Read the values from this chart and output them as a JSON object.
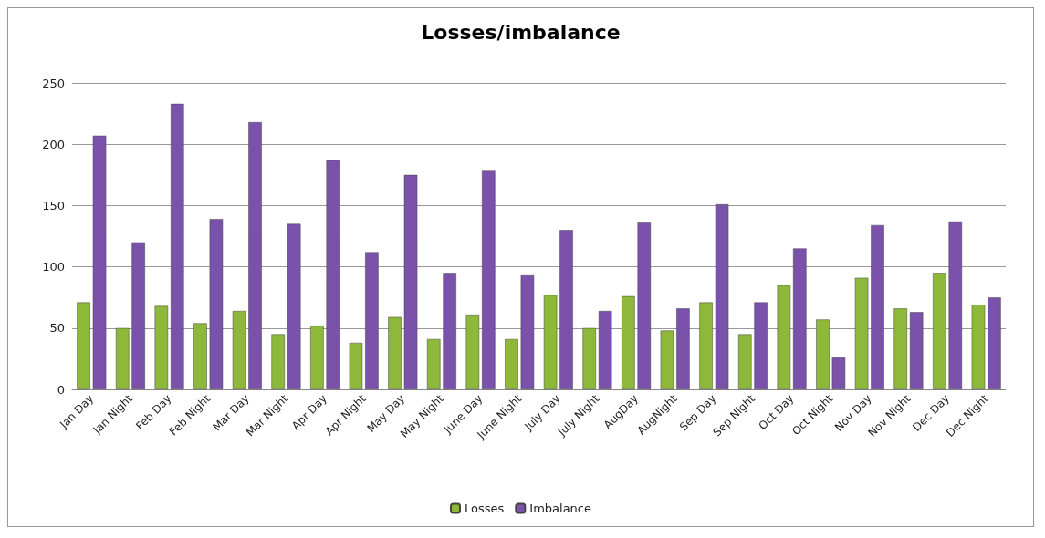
{
  "chart_data": {
    "type": "bar",
    "title": "Losses/imbalance",
    "categories": [
      "Jan Day",
      "Jan Night",
      "Feb Day",
      "Feb Night",
      "Mar Day",
      "Mar Night",
      "Apr Day",
      "Apr Night",
      "May Day",
      "May Night",
      "June Day",
      "June Night",
      "July Day",
      "July Night",
      "AugDay",
      "AugNight",
      "Sep Day",
      "Sep Night",
      "Oct Day",
      "Oct Night",
      "Nov Day",
      "Nov Night",
      "Dec Day",
      "Dec Night"
    ],
    "series": [
      {
        "name": "Losses",
        "color": "#8db83a",
        "values": [
          71,
          50,
          68,
          54,
          64,
          45,
          52,
          38,
          59,
          41,
          61,
          41,
          77,
          50,
          76,
          48,
          71,
          45,
          85,
          57,
          91,
          66,
          95,
          69
        ]
      },
      {
        "name": "Imbalance",
        "color": "#7b52ab",
        "values": [
          207,
          120,
          233,
          139,
          218,
          135,
          187,
          112,
          175,
          95,
          179,
          93,
          130,
          64,
          136,
          66,
          151,
          71,
          115,
          26,
          134,
          63,
          137,
          75
        ]
      }
    ],
    "ylim": [
      0,
      250
    ],
    "yticks": [
      0,
      50,
      100,
      150,
      200,
      250
    ],
    "grid": "y",
    "legend": "bottom"
  }
}
